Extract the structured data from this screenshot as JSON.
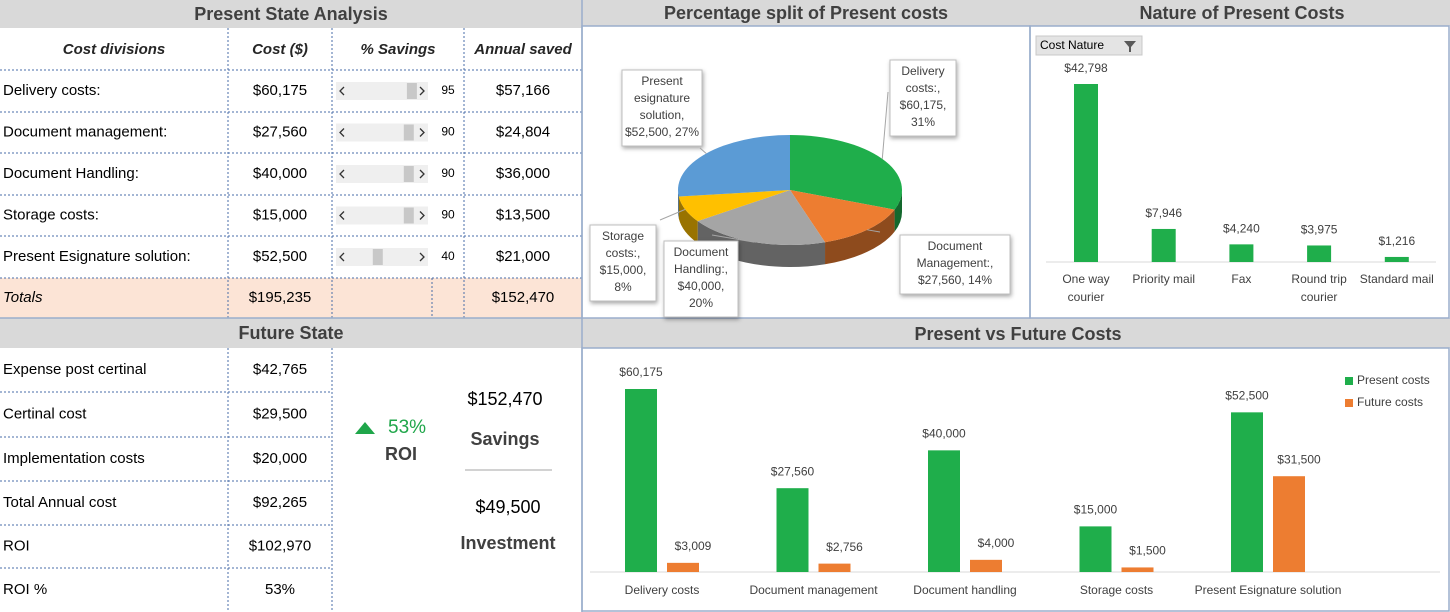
{
  "present_state": {
    "title": "Present State Analysis",
    "headers": [
      "Cost divisions",
      "Cost ($)",
      "% Savings",
      "Annual saved"
    ],
    "rows": [
      [
        "Delivery costs:",
        "$60,175",
        95,
        "$57,166"
      ],
      [
        "Document management:",
        "$27,560",
        90,
        "$24,804"
      ],
      [
        "Document Handling:",
        "$40,000",
        90,
        "$36,000"
      ],
      [
        "Storage costs:",
        "$15,000",
        90,
        "$13,500"
      ],
      [
        "Present Esignature solution:",
        "$52,500",
        40,
        "$21,000"
      ]
    ],
    "totals": {
      "label": "Totals",
      "cost": "$195,235",
      "saved": "$152,470"
    }
  },
  "future_state": {
    "title": "Future State",
    "rows": [
      [
        "Expense post certinal",
        "$42,765"
      ],
      [
        "Certinal cost",
        "$29,500"
      ],
      [
        "Implementation costs",
        "$20,000"
      ],
      [
        "Total Annual cost",
        "$92,265"
      ],
      [
        "ROI",
        "$102,970"
      ],
      [
        "ROI %",
        "53%"
      ]
    ],
    "roi": {
      "percent": "53%",
      "label": "ROI"
    },
    "savings": {
      "value": "$152,470",
      "label": "Savings"
    },
    "investment": {
      "value": "$49,500",
      "label": "Investment"
    }
  },
  "chart_data": [
    {
      "type": "pie",
      "title": "Percentage split of Present costs",
      "categories": [
        "Delivery costs:",
        "Document Management:",
        "Document Handling:",
        "Storage costs:",
        "Present esignature solution"
      ],
      "values": [
        60175,
        27560,
        40000,
        15000,
        52500
      ],
      "value_labels": [
        "Delivery costs:, $60,175, 31%",
        "Document Management:, $27,560, 14%",
        "Document Handling:, $40,000, 20%",
        "Storage costs:, $15,000, 8%",
        "Present esignature solution, $52,500, 27%"
      ],
      "colors": [
        "#1fae4b",
        "#ed7d31",
        "#a5a5a5",
        "#ffc000",
        "#5b9bd5"
      ]
    },
    {
      "type": "bar",
      "title": "Nature of Present Costs",
      "filter": "Cost Nature",
      "categories": [
        "One way courier",
        "Priority mail",
        "Fax",
        "Round trip courier",
        "Standard mail"
      ],
      "values": [
        42798,
        7946,
        4240,
        3975,
        1216
      ],
      "value_labels": [
        "$42,798",
        "$7,946",
        "$4,240",
        "$3,975",
        "$1,216"
      ],
      "color": "#1fae4b"
    },
    {
      "type": "grouped_bar",
      "title": "Present vs Future Costs",
      "categories": [
        "Delivery costs",
        "Document management",
        "Document handling",
        "Storage costs",
        "Present Esignature solution"
      ],
      "series": [
        {
          "name": "Present costs",
          "color": "#1fae4b",
          "values": [
            60175,
            27560,
            40000,
            15000,
            52500
          ],
          "value_labels": [
            "$60,175",
            "$27,560",
            "$40,000",
            "$15,000",
            "$52,500"
          ]
        },
        {
          "name": "Future costs",
          "color": "#ed7d31",
          "values": [
            3009,
            2756,
            4000,
            1500,
            31500
          ],
          "value_labels": [
            "$3,009",
            "$2,756",
            "$4,000",
            "$1,500",
            "$31,500"
          ]
        }
      ],
      "legend": "top-right"
    }
  ]
}
